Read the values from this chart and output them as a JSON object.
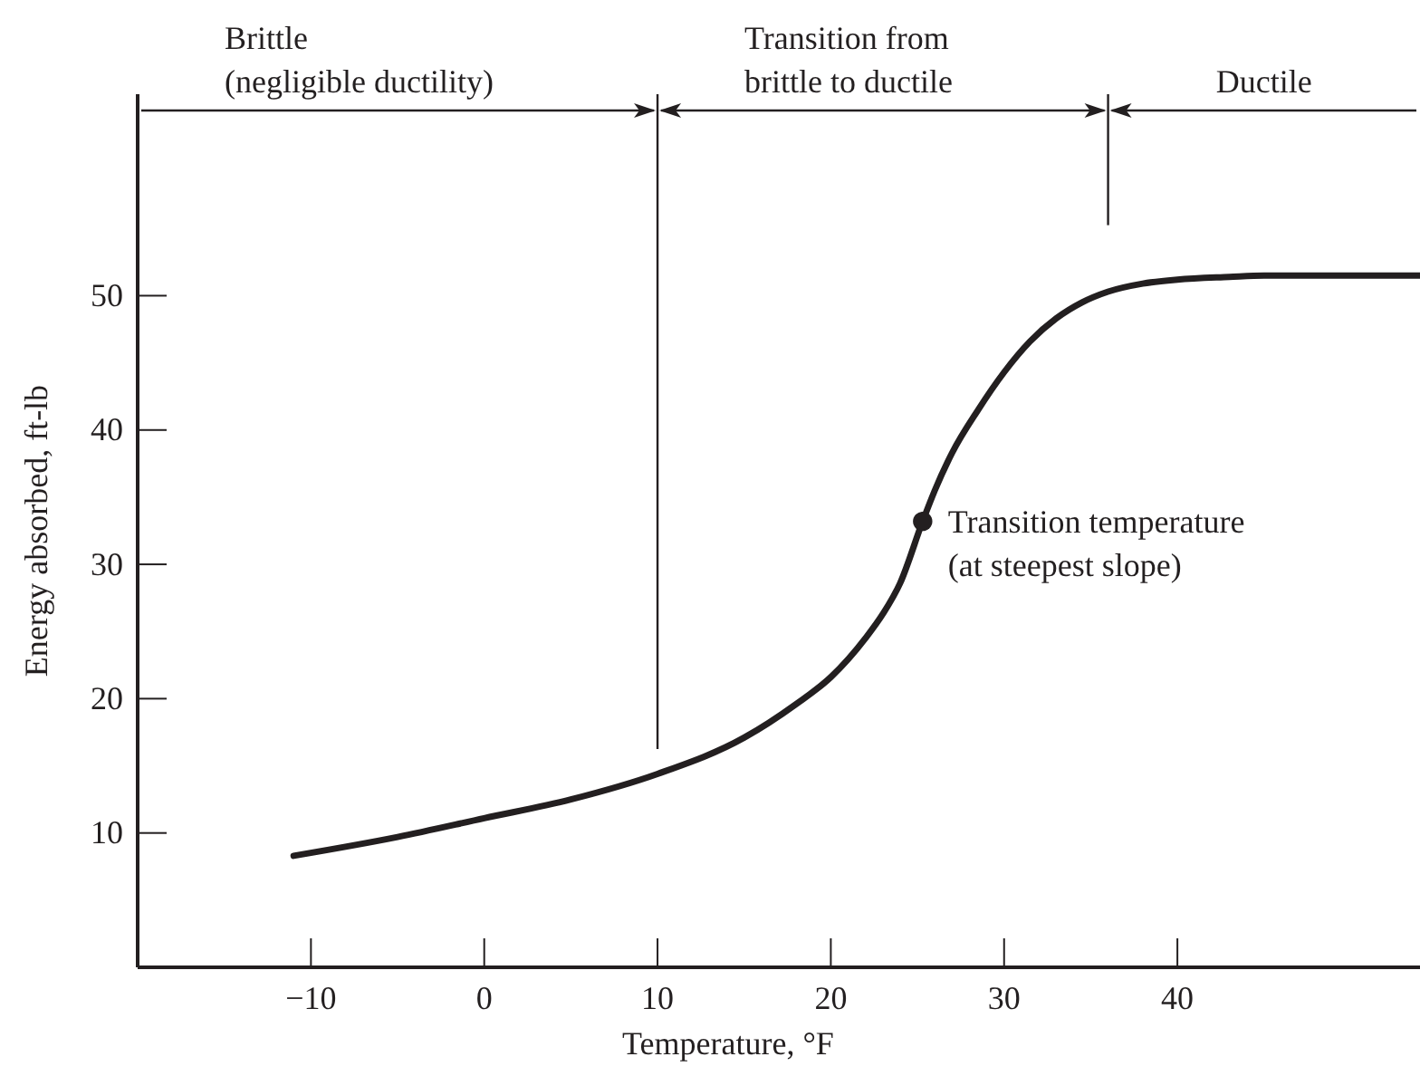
{
  "chart_data": {
    "type": "line",
    "xlabel": "Temperature, °F",
    "ylabel": "Energy absorbed, ft-lb",
    "xlim": [
      -20,
      54
    ],
    "ylim": [
      0,
      65
    ],
    "xticks": [
      -10,
      0,
      10,
      20,
      30,
      40
    ],
    "yticks": [
      10,
      20,
      30,
      40,
      50
    ],
    "marker": "none",
    "line_style": "solid",
    "series": [
      {
        "color": "#231f20",
        "x": [
          -11,
          -5,
          0,
          5,
          10,
          15,
          18,
          20,
          22,
          23,
          24,
          25.3,
          26,
          27,
          28.5,
          30,
          31.5,
          33,
          34.5,
          36,
          38,
          40,
          43,
          45,
          50,
          54
        ],
        "values": [
          8.3,
          9.7,
          11.1,
          12.5,
          14.4,
          17.1,
          19.6,
          21.6,
          24.5,
          26.3,
          28.6,
          33.2,
          35.5,
          38.3,
          41.5,
          44.3,
          46.6,
          48.3,
          49.5,
          50.3,
          50.9,
          51.2,
          51.4,
          51.5,
          51.5,
          51.5
        ]
      },
      {
        "type": "scatter",
        "marker": "circle",
        "color": "#231f20",
        "x": [
          25.3
        ],
        "values": [
          33.2
        ]
      }
    ],
    "ref_lines": [
      {
        "axis": "x",
        "value": 10
      },
      {
        "axis": "x",
        "value": 36
      }
    ],
    "annotations": [
      "Brittle\n(negligible ductility)",
      "Transition from\nbrittle to ductile",
      "Ductile",
      {
        "text": "Transition temperature\n(at steepest slope)",
        "x": 25.3,
        "y": 33.2
      }
    ]
  }
}
